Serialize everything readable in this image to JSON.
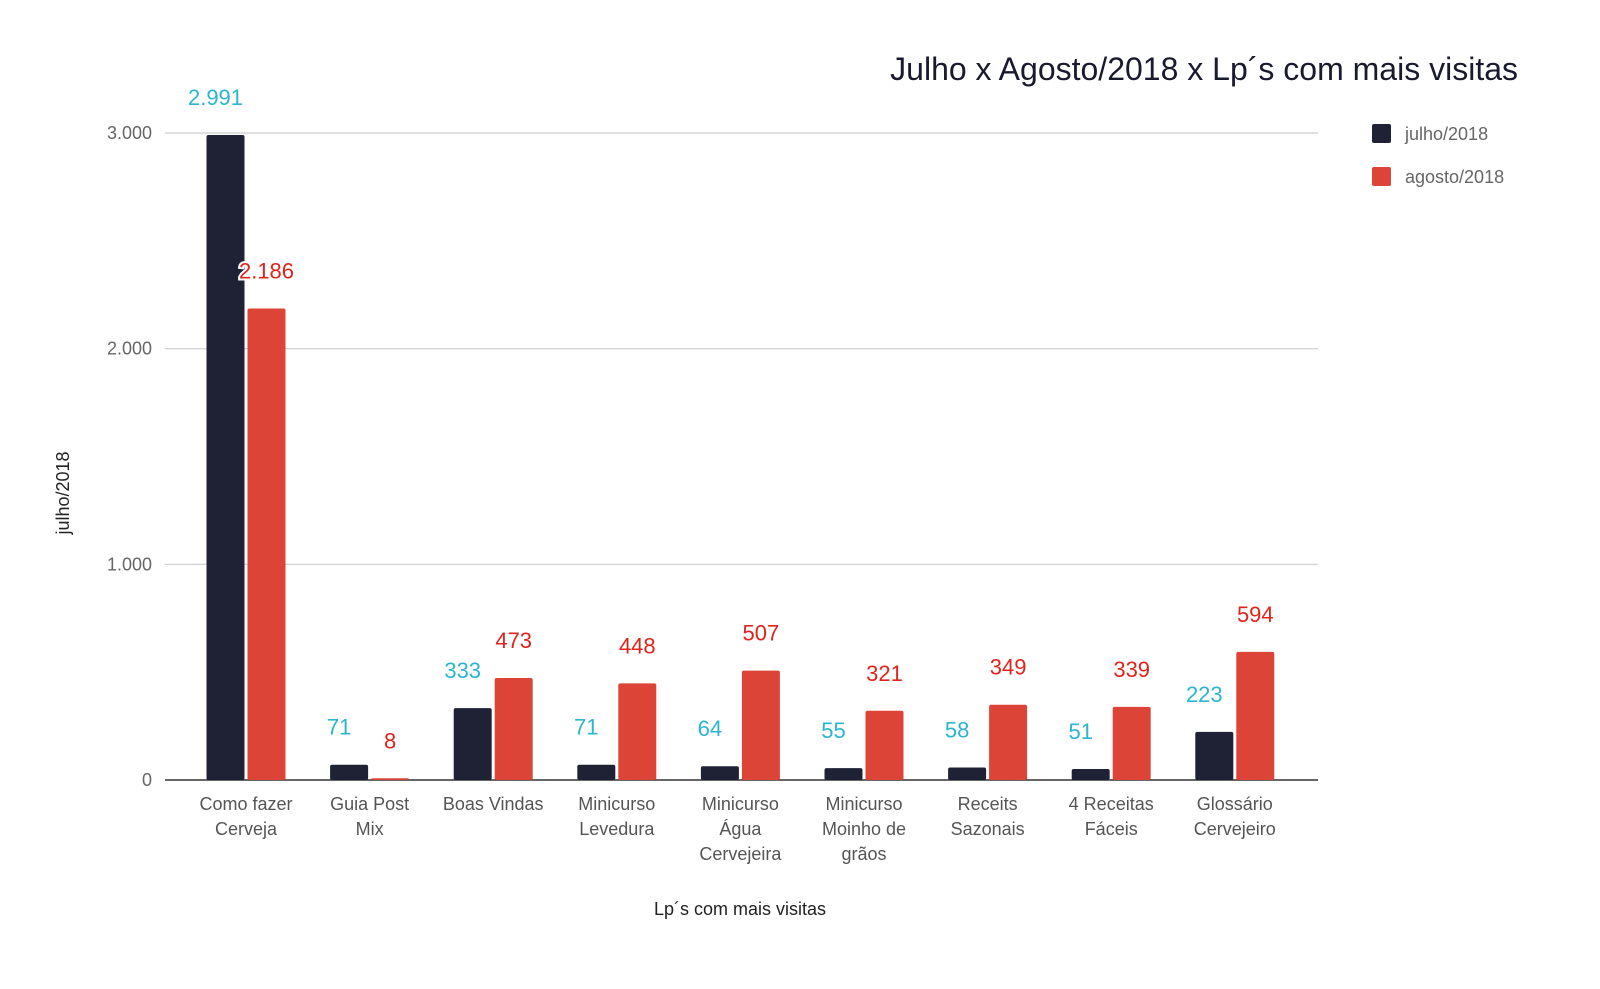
{
  "chart_data": {
    "type": "bar",
    "title": "Julho x Agosto/2018 x Lp´s com mais visitas",
    "xlabel": "Lp´s com mais visitas",
    "ylabel": "julho/2018",
    "ylim": [
      0,
      3000
    ],
    "yticks": [
      0,
      1000,
      2000,
      3000
    ],
    "ytick_labels": [
      "0",
      "1.000",
      "2.000",
      "3.000"
    ],
    "grid": true,
    "legend_position": "right",
    "categories": [
      [
        "Como fazer",
        "Cerveja"
      ],
      [
        "Guia Post",
        "Mix"
      ],
      [
        "Boas Vindas"
      ],
      [
        "Minicurso",
        "Levedura"
      ],
      [
        "Minicurso",
        "Água",
        "Cervejeira"
      ],
      [
        "Minicurso",
        "Moinho de",
        "grãos"
      ],
      [
        "Receits",
        "Sazonais"
      ],
      [
        "4 Receitas",
        "Fáceis"
      ],
      [
        "Glossário",
        "Cervejeiro"
      ]
    ],
    "series": [
      {
        "name": "julho/2018",
        "color": "#1f2235",
        "label_color": "#2bb5cf",
        "values": [
          2991,
          71,
          333,
          71,
          64,
          55,
          58,
          51,
          223
        ],
        "labels": [
          "2.991",
          "71",
          "333",
          "71",
          "64",
          "55",
          "58",
          "51",
          "223"
        ]
      },
      {
        "name": "agosto/2018",
        "color": "#dc4437",
        "label_color": "#e0241b",
        "values": [
          2186,
          8,
          473,
          448,
          507,
          321,
          349,
          339,
          594
        ],
        "labels": [
          "2.186",
          "8",
          "473",
          "448",
          "507",
          "321",
          "349",
          "339",
          "594"
        ]
      }
    ]
  }
}
